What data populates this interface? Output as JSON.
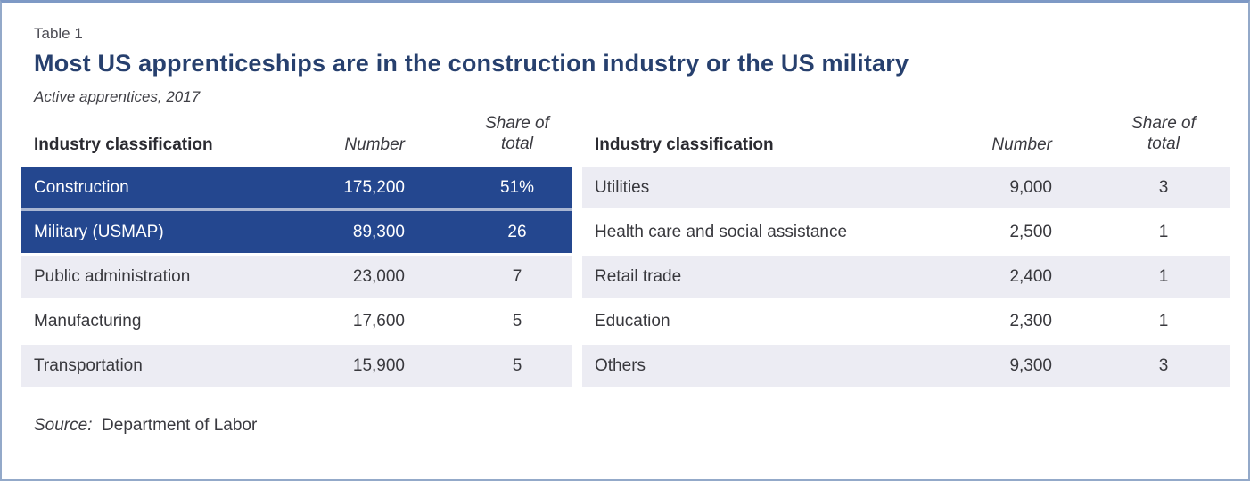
{
  "figure": {
    "label": "Table 1",
    "title": "Most US apprenticeships are in the construction industry or the US military",
    "subtitle": "Active apprentices, 2017",
    "source_label": "Source:",
    "source_value": "Department of Labor"
  },
  "header": {
    "industry": "Industry classification",
    "number": "Number",
    "share_line1": "Share of",
    "share_line2": "total"
  },
  "left_table": {
    "rows": [
      {
        "industry": "Construction",
        "number": "175,200",
        "share": "51%",
        "highlighted": true
      },
      {
        "industry": "Military (USMAP)",
        "number": "89,300",
        "share": "26",
        "highlighted": true
      },
      {
        "industry": "Public administration",
        "number": "23,000",
        "share": "7",
        "highlighted": false
      },
      {
        "industry": "Manufacturing",
        "number": "17,600",
        "share": "5",
        "highlighted": false
      },
      {
        "industry": "Transportation",
        "number": "15,900",
        "share": "5",
        "highlighted": false
      }
    ]
  },
  "right_table": {
    "rows": [
      {
        "industry": "Utilities",
        "number": "9,000",
        "share": "3",
        "highlighted": false
      },
      {
        "industry": "Health care and social assistance",
        "number": "2,500",
        "share": "1",
        "highlighted": false
      },
      {
        "industry": "Retail trade",
        "number": "2,400",
        "share": "1",
        "highlighted": false
      },
      {
        "industry": "Education",
        "number": "2,300",
        "share": "1",
        "highlighted": false
      },
      {
        "industry": "Others",
        "number": "9,300",
        "share": "3",
        "highlighted": false
      }
    ]
  },
  "colors": {
    "highlight_row": "#24478f",
    "stripe_row": "#ececf3",
    "title_text": "#27406e",
    "card_border": "#93a9c9"
  }
}
